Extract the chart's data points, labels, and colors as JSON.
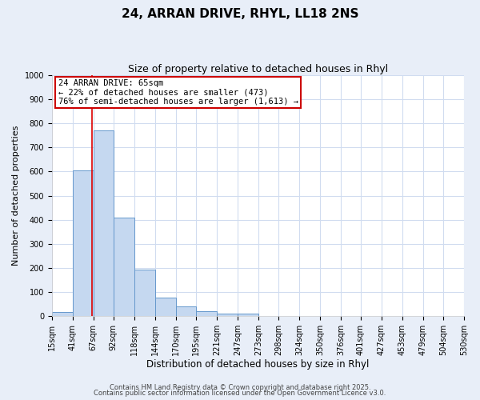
{
  "title1": "24, ARRAN DRIVE, RHYL, LL18 2NS",
  "title2": "Size of property relative to detached houses in Rhyl",
  "xlabel": "Distribution of detached houses by size in Rhyl",
  "ylabel": "Number of detached properties",
  "bin_edges": [
    15,
    41,
    67,
    92,
    118,
    144,
    170,
    195,
    221,
    247,
    273,
    298,
    324,
    350,
    376,
    401,
    427,
    453,
    479,
    504,
    530
  ],
  "bar_heights": [
    15,
    605,
    770,
    410,
    193,
    76,
    40,
    18,
    10,
    10,
    0,
    0,
    0,
    0,
    0,
    0,
    0,
    0,
    0,
    0
  ],
  "bar_color": "#c5d8f0",
  "bar_edgecolor": "#6699cc",
  "grid_color": "#d0dcf0",
  "property_size": 65,
  "red_line_color": "#dd0000",
  "annotation_line1": "24 ARRAN DRIVE: 65sqm",
  "annotation_line2": "← 22% of detached houses are smaller (473)",
  "annotation_line3": "76% of semi-detached houses are larger (1,613) →",
  "annotation_box_facecolor": "#ffffff",
  "annotation_box_edgecolor": "#cc0000",
  "ylim": [
    0,
    1000
  ],
  "yticks": [
    0,
    100,
    200,
    300,
    400,
    500,
    600,
    700,
    800,
    900,
    1000
  ],
  "bg_color": "#e8eef8",
  "plot_bg_color": "#ffffff",
  "footer_line1": "Contains HM Land Registry data © Crown copyright and database right 2025.",
  "footer_line2": "Contains public sector information licensed under the Open Government Licence v3.0.",
  "title1_fontsize": 11,
  "title2_fontsize": 9,
  "xlabel_fontsize": 8.5,
  "ylabel_fontsize": 8,
  "tick_fontsize": 7,
  "annotation_fontsize": 7.5,
  "footer_fontsize": 6
}
